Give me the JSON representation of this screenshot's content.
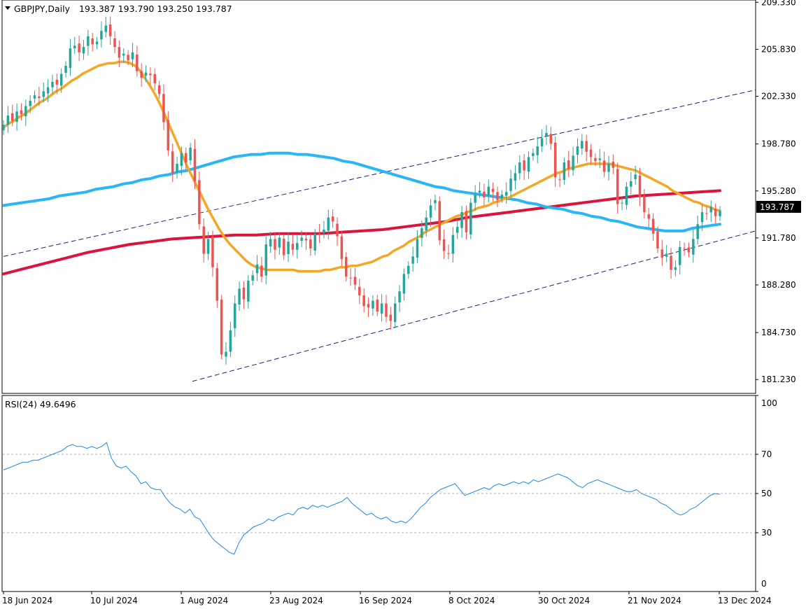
{
  "header": {
    "symbol": "GBPJPY,Daily",
    "ohlc": "193.387 193.790 193.250 193.787",
    "indicator": "RSI(24) 49.6496"
  },
  "colors": {
    "bull": "#26a69a",
    "bear": "#ef5350",
    "ma_fast": "#f5a623",
    "ma_mid": "#29b6f6",
    "ma_slow": "#dc143c",
    "rsi": "#1e88e5",
    "channel": "#1a237e"
  },
  "chart_data": [
    {
      "type": "candlestick",
      "title": "GBPJPY,Daily",
      "x_ticks": [
        "18 Jun 2024",
        "10 Jul 2024",
        "1 Aug 2024",
        "23 Aug 2024",
        "16 Sep 2024",
        "8 Oct 2024",
        "30 Oct 2024",
        "21 Nov 2024",
        "13 Dec 2024"
      ],
      "y_ticks": [
        "209.330",
        "205.830",
        "202.330",
        "198.780",
        "195.280",
        "191.780",
        "188.280",
        "184.730",
        "181.230"
      ],
      "ylim": [
        180.2,
        209.5
      ],
      "current_price_label": "193.787",
      "close": [
        200.2,
        200.9,
        200.5,
        201.2,
        201.0,
        201.6,
        202.0,
        202.4,
        202.2,
        202.7,
        203.0,
        203.4,
        203.2,
        204.0,
        204.6,
        205.9,
        206.1,
        205.6,
        206.0,
        206.8,
        206.2,
        206.4,
        207.2,
        207.6,
        206.8,
        206.0,
        205.2,
        205.5,
        205.0,
        205.6,
        204.2,
        203.7,
        204.1,
        203.9,
        203.3,
        202.5,
        200.4,
        198.3,
        196.6,
        197.3,
        198.1,
        197.4,
        198.5,
        196.0,
        192.8,
        190.6,
        191.7,
        189.6,
        187.1,
        183.1,
        183.3,
        184.9,
        186.9,
        188.0,
        187.2,
        188.6,
        189.0,
        189.8,
        188.9,
        191.3,
        191.7,
        190.9,
        191.8,
        190.5,
        191.5,
        190.9,
        191.4,
        191.8,
        191.6,
        191.0,
        192.1,
        192.0,
        192.4,
        193.3,
        193.0,
        191.9,
        190.2,
        188.9,
        188.8,
        188.3,
        187.5,
        186.7,
        186.6,
        187.1,
        186.3,
        186.9,
        185.9,
        185.6,
        186.9,
        187.8,
        189.1,
        189.7,
        190.4,
        191.7,
        192.5,
        193.3,
        194.2,
        194.6,
        191.6,
        190.8,
        190.6,
        192.0,
        192.6,
        193.7,
        192.2,
        194.4,
        195.0,
        195.3,
        194.8,
        195.6,
        195.2,
        194.6,
        195.0,
        195.2,
        196.2,
        196.6,
        197.4,
        196.8,
        197.8,
        198.1,
        198.6,
        199.2,
        199.6,
        198.8,
        196.3,
        196.1,
        197.4,
        196.9,
        197.9,
        198.6,
        199.0,
        198.2,
        197.8,
        197.5,
        197.7,
        196.7,
        197.3,
        197.0,
        194.3,
        194.4,
        195.6,
        196.0,
        196.5,
        194.8,
        193.7,
        193.2,
        192.1,
        191.0,
        190.3,
        190.6,
        189.4,
        189.6,
        191.1,
        191.0,
        190.7,
        191.7,
        192.8,
        193.7,
        193.6,
        194.1,
        193.4,
        193.787
      ],
      "ma_fast": [
        200.0,
        200.3,
        200.5,
        200.8,
        201.0,
        201.3,
        201.6,
        201.9,
        202.1,
        202.4,
        202.7,
        202.9,
        203.2,
        203.5,
        203.7,
        204.0,
        204.2,
        204.4,
        204.6,
        204.7,
        204.8,
        204.8,
        204.9,
        204.9,
        204.8,
        204.6,
        204.2,
        203.6,
        203.0,
        202.3,
        201.5,
        200.6,
        199.7,
        198.8,
        197.9,
        197.0,
        196.2,
        195.4,
        194.6,
        193.8,
        193.1,
        192.4,
        191.8,
        191.3,
        190.9,
        190.5,
        190.1,
        189.8,
        189.6,
        189.5,
        189.4,
        189.4,
        189.4,
        189.4,
        189.4,
        189.4,
        189.3,
        189.3,
        189.3,
        189.3,
        189.3,
        189.4,
        189.4,
        189.5,
        189.6,
        189.6,
        189.7,
        189.7,
        189.8,
        189.9,
        190.0,
        190.2,
        190.4,
        190.5,
        190.8,
        191.0,
        191.2,
        191.5,
        191.7,
        191.9,
        192.2,
        192.4,
        192.6,
        192.8,
        193.0,
        193.2,
        193.4,
        193.5,
        193.7,
        193.8,
        194.0,
        194.1,
        194.2,
        194.4,
        194.5,
        194.7,
        194.8,
        195.0,
        195.2,
        195.4,
        195.6,
        195.8,
        196.0,
        196.2,
        196.4,
        196.6,
        196.7,
        196.9,
        197.0,
        197.1,
        197.2,
        197.3,
        197.3,
        197.3,
        197.3,
        197.3,
        197.2,
        197.1,
        197.0,
        196.9,
        196.8,
        196.6,
        196.4,
        196.2,
        196.0,
        195.8,
        195.6,
        195.3,
        195.1,
        194.9,
        194.7,
        194.5,
        194.4,
        194.2,
        194.1,
        193.9,
        193.8
      ],
      "ma_mid": [
        194.2,
        194.3,
        194.4,
        194.5,
        194.6,
        194.7,
        194.9,
        195.0,
        195.1,
        195.2,
        195.4,
        195.5,
        195.6,
        195.8,
        195.9,
        196.1,
        196.2,
        196.4,
        196.5,
        196.7,
        196.8,
        197.0,
        197.2,
        197.4,
        197.6,
        197.8,
        197.9,
        198.0,
        198.0,
        198.1,
        198.1,
        198.1,
        198.0,
        198.0,
        197.9,
        197.8,
        197.7,
        197.5,
        197.4,
        197.2,
        197.0,
        196.8,
        196.6,
        196.4,
        196.2,
        196.0,
        195.8,
        195.6,
        195.5,
        195.3,
        195.2,
        195.1,
        195.0,
        194.9,
        194.8,
        194.7,
        194.6,
        194.4,
        194.3,
        194.1,
        194.0,
        193.9,
        193.7,
        193.6,
        193.4,
        193.3,
        193.1,
        193.0,
        192.8,
        192.6,
        192.5,
        192.4,
        192.3,
        192.3,
        192.3,
        192.5,
        192.6,
        192.7,
        192.8
      ],
      "ma_slow": [
        189.1,
        189.5,
        189.9,
        190.3,
        190.7,
        191.0,
        191.3,
        191.5,
        191.7,
        191.8,
        191.9,
        192.0,
        192.0,
        192.1,
        192.1,
        192.1,
        192.2,
        192.3,
        192.4,
        192.6,
        192.8,
        193.0,
        193.3,
        193.5,
        193.7,
        193.9,
        194.1,
        194.3,
        194.5,
        194.7,
        194.9,
        195.0,
        195.1,
        195.2,
        195.3
      ],
      "channel": {
        "lower": [
          [
            181.1,
            0
          ],
          [
            192.3,
            1
          ]
        ],
        "upper": [
          [
            190.4,
            0
          ],
          [
            202.8,
            1
          ]
        ]
      }
    },
    {
      "type": "line",
      "title": "RSI(24) 49.6496",
      "y_ticks": [
        "100",
        "70",
        "50",
        "30",
        "0"
      ],
      "ylim": [
        0,
        100
      ],
      "levels": [
        70,
        50,
        30
      ],
      "values": [
        62,
        63,
        64,
        65,
        66,
        66,
        67,
        67,
        68,
        69,
        70,
        71,
        72,
        74,
        75,
        74,
        74,
        73,
        74,
        73,
        74,
        76,
        68,
        64,
        63,
        64,
        61,
        59,
        55,
        56,
        53,
        52,
        52,
        48,
        45,
        43,
        42,
        40,
        42,
        38,
        37,
        33,
        29,
        26,
        24,
        22,
        20,
        19,
        25,
        29,
        31,
        33,
        34,
        35,
        37,
        36,
        38,
        39,
        40,
        39,
        42,
        43,
        42,
        44,
        43,
        44,
        43,
        44,
        45,
        46,
        48,
        45,
        43,
        41,
        39,
        40,
        38,
        37,
        38,
        36,
        35,
        36,
        35,
        37,
        40,
        43,
        45,
        48,
        50,
        52,
        53,
        54,
        55,
        52,
        49,
        50,
        51,
        52,
        53,
        52,
        54,
        55,
        54,
        55,
        56,
        55,
        56,
        55,
        57,
        56,
        57,
        58,
        59,
        60,
        59,
        58,
        56,
        54,
        53,
        55,
        56,
        57,
        56,
        55,
        54,
        53,
        52,
        51,
        51,
        52,
        50,
        49,
        48,
        47,
        45,
        44,
        42,
        40,
        39,
        40,
        42,
        43,
        45,
        47,
        49,
        50,
        49.6
      ]
    }
  ]
}
